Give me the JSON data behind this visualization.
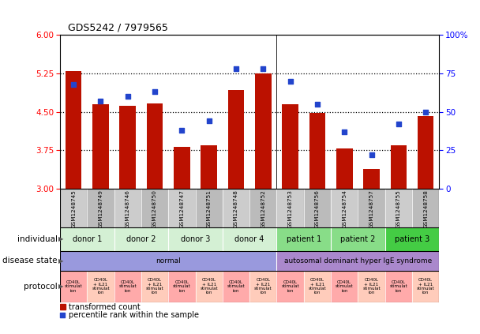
{
  "title": "GDS5242 / 7979565",
  "samples": [
    "GSM1248745",
    "GSM1248749",
    "GSM1248746",
    "GSM1248750",
    "GSM1248747",
    "GSM1248751",
    "GSM1248748",
    "GSM1248752",
    "GSM1248753",
    "GSM1248756",
    "GSM1248754",
    "GSM1248757",
    "GSM1248755",
    "GSM1248758"
  ],
  "transformed_count": [
    5.3,
    4.65,
    4.62,
    4.67,
    3.82,
    3.85,
    4.92,
    5.25,
    4.65,
    4.48,
    3.78,
    3.38,
    3.85,
    4.42
  ],
  "percentile_rank": [
    68,
    57,
    60,
    63,
    38,
    44,
    78,
    78,
    70,
    55,
    37,
    22,
    42,
    50
  ],
  "ylim_left": [
    3,
    6
  ],
  "ylim_right": [
    0,
    100
  ],
  "yticks_left": [
    3,
    3.75,
    4.5,
    5.25,
    6
  ],
  "yticks_right": [
    0,
    25,
    50,
    75,
    100
  ],
  "bar_color": "#bb1100",
  "dot_color": "#2244cc",
  "individual_groups": [
    {
      "label": "donor 1",
      "start": 0,
      "end": 2,
      "color": "#d4f0d4"
    },
    {
      "label": "donor 2",
      "start": 2,
      "end": 4,
      "color": "#d4f0d4"
    },
    {
      "label": "donor 3",
      "start": 4,
      "end": 6,
      "color": "#d4f0d4"
    },
    {
      "label": "donor 4",
      "start": 6,
      "end": 8,
      "color": "#d4f0d4"
    },
    {
      "label": "patient 1",
      "start": 8,
      "end": 10,
      "color": "#88dd88"
    },
    {
      "label": "patient 2",
      "start": 10,
      "end": 12,
      "color": "#88dd88"
    },
    {
      "label": "patient 3",
      "start": 12,
      "end": 14,
      "color": "#44cc44"
    }
  ],
  "disease_groups": [
    {
      "label": "normal",
      "start": 0,
      "end": 8,
      "color": "#9999dd"
    },
    {
      "label": "autosomal dominant hyper IgE syndrome",
      "start": 8,
      "end": 14,
      "color": "#aa88cc"
    }
  ],
  "protocol_colors_odd": "#ffaaaa",
  "protocol_colors_even": "#ffccbb",
  "legend_bar_label": "transformed count",
  "legend_dot_label": "percentile rank within the sample",
  "bg_color": "#ffffff"
}
